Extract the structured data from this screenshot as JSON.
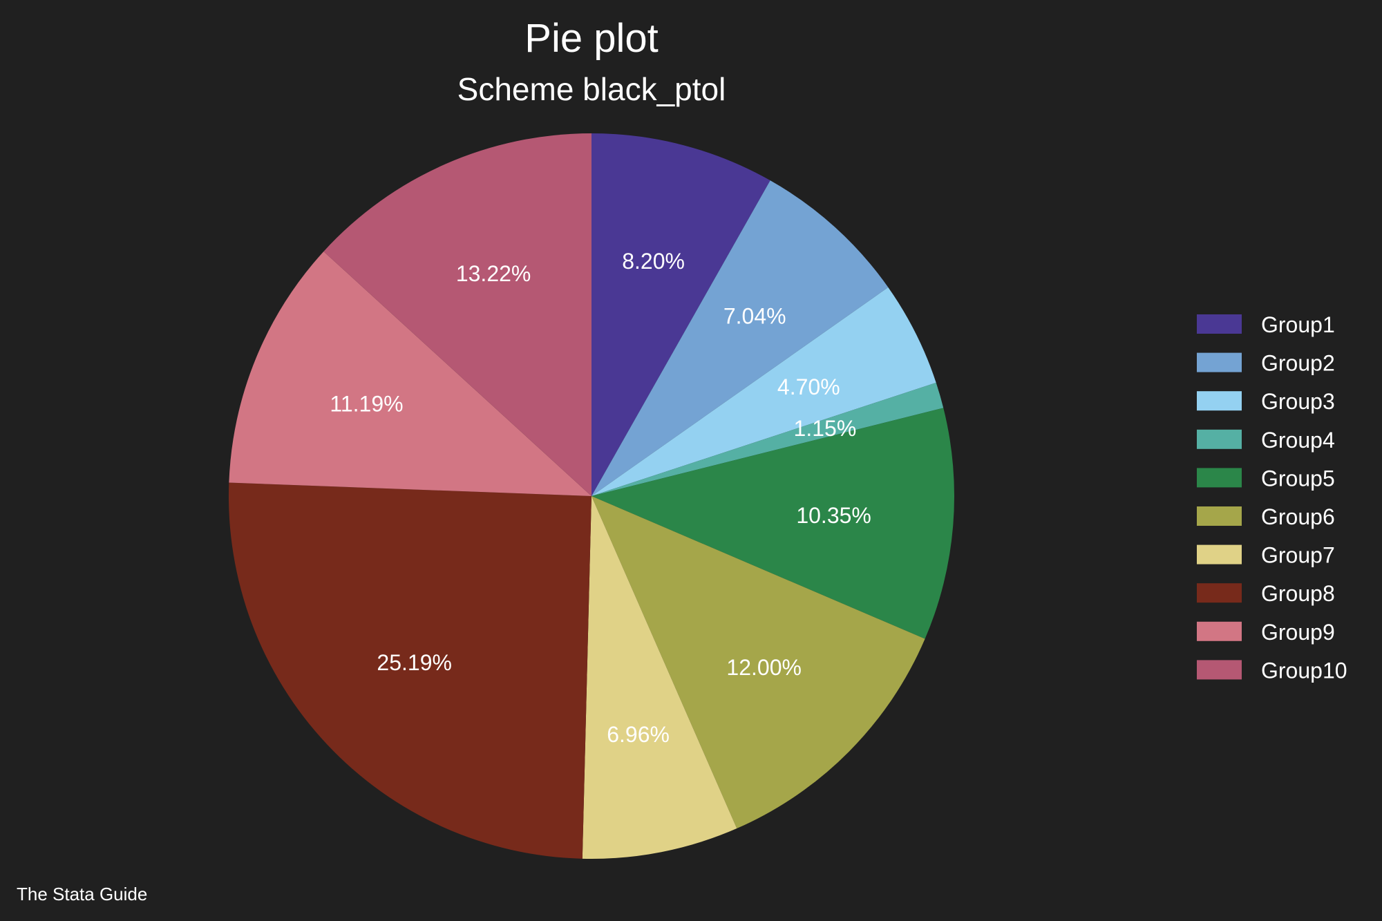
{
  "chart_data": {
    "type": "pie",
    "title": "Pie plot",
    "subtitle": "Scheme black_ptol",
    "note": "The Stata Guide",
    "legend_position": "right",
    "background": "#202020",
    "start": "12 o'clock, clockwise",
    "slices": [
      {
        "name": "Group1",
        "value": 8.2,
        "label": "8.20%",
        "color": "#4a3894"
      },
      {
        "name": "Group2",
        "value": 7.04,
        "label": "7.04%",
        "color": "#74a3d3"
      },
      {
        "name": "Group3",
        "value": 4.7,
        "label": "4.70%",
        "color": "#94d1f1"
      },
      {
        "name": "Group4",
        "value": 1.15,
        "label": "1.15%",
        "color": "#55b0a4"
      },
      {
        "name": "Group5",
        "value": 10.35,
        "label": "10.35%",
        "color": "#2b8649"
      },
      {
        "name": "Group6",
        "value": 12.0,
        "label": "12.00%",
        "color": "#a5a64a"
      },
      {
        "name": "Group7",
        "value": 6.96,
        "label": "6.96%",
        "color": "#e0d287"
      },
      {
        "name": "Group8",
        "value": 25.19,
        "label": "25.19%",
        "color": "#772a1b"
      },
      {
        "name": "Group9",
        "value": 11.19,
        "label": "11.19%",
        "color": "#d27684"
      },
      {
        "name": "Group10",
        "value": 13.22,
        "label": "13.22%",
        "color": "#b55873"
      }
    ]
  }
}
